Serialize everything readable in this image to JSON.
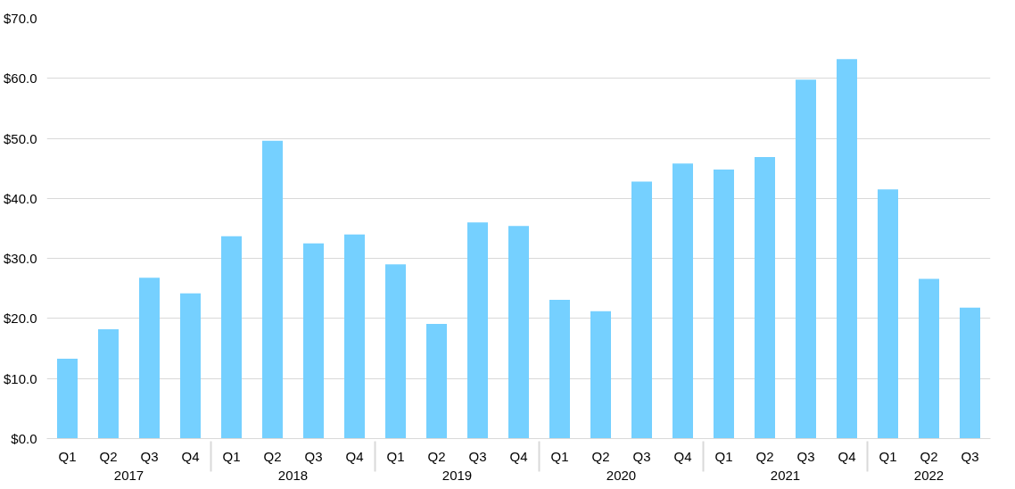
{
  "chart_data": {
    "type": "bar",
    "categories": [
      "Q1",
      "Q2",
      "Q3",
      "Q4",
      "Q1",
      "Q2",
      "Q3",
      "Q4",
      "Q1",
      "Q2",
      "Q3",
      "Q4",
      "Q1",
      "Q2",
      "Q3",
      "Q4",
      "Q1",
      "Q2",
      "Q3",
      "Q4",
      "Q1",
      "Q2",
      "Q3"
    ],
    "annotations": [
      "2017",
      "2018",
      "2019",
      "2020",
      "2021",
      "2022"
    ],
    "values": [
      13.3,
      18.2,
      26.8,
      24.2,
      33.7,
      49.6,
      32.5,
      34.0,
      29.0,
      19.1,
      36.0,
      35.4,
      23.1,
      21.2,
      42.8,
      45.8,
      44.8,
      46.9,
      59.8,
      63.2,
      41.5,
      26.6,
      21.8
    ],
    "color": "#75d0ff",
    "ylim": [
      0,
      70
    ],
    "yticks": [
      {
        "value": 0,
        "label": "$0.0"
      },
      {
        "value": 10,
        "label": "$10.0"
      },
      {
        "value": 20,
        "label": "$20.0"
      },
      {
        "value": 30,
        "label": "$30.0"
      },
      {
        "value": 40,
        "label": "$40.0"
      },
      {
        "value": 50,
        "label": "$50.0"
      },
      {
        "value": 60,
        "label": "$60.0"
      },
      {
        "value": 70,
        "label": "$70.0"
      }
    ],
    "grid": "y"
  }
}
